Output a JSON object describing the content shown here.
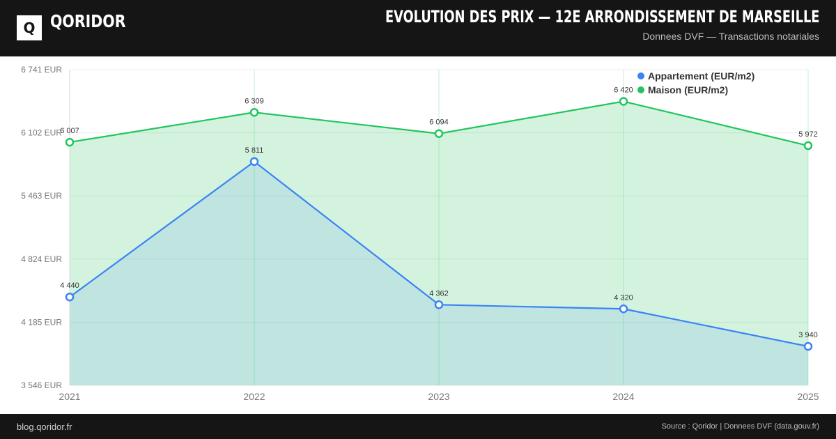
{
  "header": {
    "logo_glyph": "Q",
    "brand": "QORIDOR",
    "title": "EVOLUTION DES PRIX — 12E ARRONDISSEMENT DE MARSEILLE",
    "subtitle": "Donnees DVF — Transactions notariales"
  },
  "footer": {
    "left": "blog.qoridor.fr",
    "right": "Source : Qoridor | Donnees DVF (data.gouv.fr)"
  },
  "colors": {
    "appartement": "#3b82f6",
    "maison": "#22c55e",
    "header_bg": "#151515"
  },
  "chart_data": {
    "type": "line",
    "x": [
      "2021",
      "2022",
      "2023",
      "2024",
      "2025"
    ],
    "ylim": [
      3546,
      6741
    ],
    "y_ticks": [
      3546,
      4185,
      4824,
      5463,
      6102,
      6741
    ],
    "y_tick_labels": [
      "3 546 EUR",
      "4 185 EUR",
      "4 824 EUR",
      "5 463 EUR",
      "6 102 EUR",
      "6 741 EUR"
    ],
    "grid": true,
    "area_fill": true,
    "legend_position": "top-right",
    "series": [
      {
        "name": "Appartement (EUR/m2)",
        "values": [
          4440,
          5811,
          4362,
          4320,
          3940
        ],
        "labels": [
          "4 440",
          "5 811",
          "4 362",
          "4 320",
          "3 940"
        ],
        "color": "#3b82f6"
      },
      {
        "name": "Maison (EUR/m2)",
        "values": [
          6007,
          6309,
          6094,
          6420,
          5972
        ],
        "labels": [
          "6 007",
          "6 309",
          "6 094",
          "6 420",
          "5 972"
        ],
        "color": "#22c55e"
      }
    ]
  }
}
